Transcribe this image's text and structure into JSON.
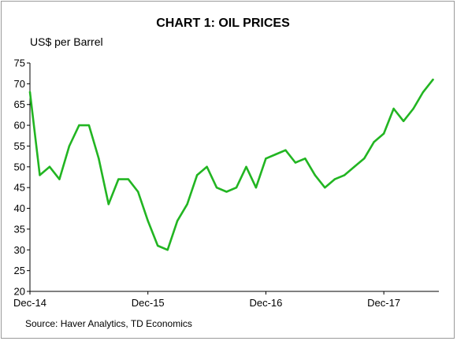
{
  "chart_data": {
    "type": "line",
    "title": "CHART 1: OIL PRICES",
    "ylabel": "US$ per Barrel",
    "source": "Source: Haver Analytics, TD Economics",
    "ylim": [
      20,
      75
    ],
    "yticks": [
      20,
      25,
      30,
      35,
      40,
      45,
      50,
      55,
      60,
      65,
      70,
      75
    ],
    "xlim": [
      "2014-12",
      "2018-05"
    ],
    "xticks": [
      {
        "value": "2014-12",
        "label": "Dec-14"
      },
      {
        "value": "2015-12",
        "label": "Dec-15"
      },
      {
        "value": "2016-12",
        "label": "Dec-16"
      },
      {
        "value": "2017-12",
        "label": "Dec-17"
      }
    ],
    "grid": false,
    "legend": "none",
    "series": [
      {
        "color": "#22b522",
        "x": [
          "2014-12",
          "2015-01",
          "2015-02",
          "2015-03",
          "2015-04",
          "2015-05",
          "2015-06",
          "2015-07",
          "2015-08",
          "2015-09",
          "2015-10",
          "2015-11",
          "2015-12",
          "2016-01",
          "2016-02",
          "2016-03",
          "2016-04",
          "2016-05",
          "2016-06",
          "2016-07",
          "2016-08",
          "2016-09",
          "2016-10",
          "2016-11",
          "2016-12",
          "2017-01",
          "2017-02",
          "2017-03",
          "2017-04",
          "2017-05",
          "2017-06",
          "2017-07",
          "2017-08",
          "2017-09",
          "2017-10",
          "2017-11",
          "2017-12",
          "2018-01",
          "2018-02",
          "2018-03",
          "2018-04",
          "2018-05"
        ],
        "values": [
          68,
          48,
          50,
          47,
          55,
          60,
          60,
          52,
          41,
          47,
          47,
          44,
          37,
          31,
          30,
          37,
          41,
          48,
          50,
          45,
          44,
          45,
          50,
          45,
          52,
          53,
          54,
          51,
          52,
          48,
          45,
          47,
          48,
          50,
          52,
          56,
          58,
          64,
          61,
          64,
          68,
          71
        ]
      }
    ]
  }
}
